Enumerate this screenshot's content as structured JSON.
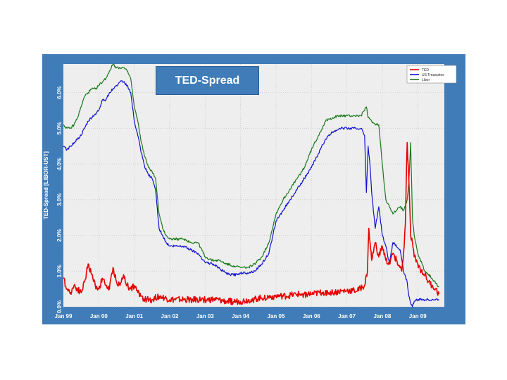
{
  "colors": {
    "frame": "#3f7cb8",
    "plot_bg": "#eeeeee",
    "ted": "#e60000",
    "treasuries": "#1010d0",
    "libor": "#1a7a1a"
  },
  "chart_data": {
    "type": "line",
    "title": "TED-Spread",
    "ylabel": "TED-Spread [LIBOR-UST]",
    "xlabel": "",
    "x_ticks": [
      "Jan 99",
      "Jan 00",
      "Jan 01",
      "Jan 02",
      "Jan 03",
      "Jan 04",
      "Jan 05",
      "Jan 06",
      "Jan 07",
      "Jan 08",
      "Jan 09"
    ],
    "y_ticks": [
      "0.0%",
      "1.0%",
      "2.0%",
      "3.0%",
      "4.0%",
      "5.0%",
      "6.0%"
    ],
    "xlim": [
      1999.0,
      2009.75
    ],
    "ylim": [
      0.0,
      6.8
    ],
    "grid": true,
    "legend_position": "top-right",
    "series": [
      {
        "name": "TED",
        "color": "#e60000",
        "x": [
          1999.0,
          1999.1,
          1999.2,
          1999.3,
          1999.4,
          1999.5,
          1999.6,
          1999.7,
          1999.8,
          1999.9,
          2000.0,
          2000.1,
          2000.2,
          2000.3,
          2000.4,
          2000.5,
          2000.6,
          2000.7,
          2000.8,
          2000.9,
          2001.0,
          2001.1,
          2001.2,
          2001.3,
          2001.5,
          2001.7,
          2002.0,
          2002.3,
          2002.6,
          2003.0,
          2003.3,
          2003.6,
          2004.0,
          2004.3,
          2004.6,
          2005.0,
          2005.3,
          2005.6,
          2006.0,
          2006.3,
          2006.6,
          2007.0,
          2007.3,
          2007.5,
          2007.58,
          2007.62,
          2007.7,
          2007.8,
          2007.9,
          2008.0,
          2008.1,
          2008.2,
          2008.3,
          2008.4,
          2008.5,
          2008.55,
          2008.6,
          2008.65,
          2008.7,
          2008.75,
          2008.8,
          2008.85,
          2008.9,
          2009.0,
          2009.1,
          2009.2,
          2009.3,
          2009.4,
          2009.5,
          2009.6
        ],
        "values": [
          0.8,
          0.5,
          0.4,
          0.6,
          0.5,
          0.4,
          0.7,
          1.2,
          0.9,
          0.6,
          0.5,
          0.8,
          0.6,
          0.5,
          1.1,
          0.7,
          0.6,
          0.9,
          0.6,
          0.5,
          0.6,
          0.4,
          0.3,
          0.2,
          0.2,
          0.3,
          0.2,
          0.2,
          0.2,
          0.2,
          0.2,
          0.15,
          0.15,
          0.2,
          0.25,
          0.3,
          0.3,
          0.35,
          0.35,
          0.4,
          0.4,
          0.45,
          0.45,
          0.6,
          1.0,
          2.2,
          1.3,
          1.8,
          1.4,
          1.7,
          1.3,
          1.2,
          1.5,
          1.3,
          1.1,
          1.0,
          1.5,
          2.3,
          4.6,
          3.5,
          2.0,
          1.8,
          1.4,
          1.2,
          1.0,
          0.9,
          0.7,
          0.6,
          0.5,
          0.35
        ]
      },
      {
        "name": "US Treasuries",
        "color": "#1010d0",
        "x": [
          1999.0,
          1999.1,
          1999.2,
          1999.3,
          1999.4,
          1999.5,
          1999.6,
          1999.7,
          1999.8,
          1999.9,
          2000.0,
          2000.1,
          2000.2,
          2000.3,
          2000.4,
          2000.5,
          2000.6,
          2000.7,
          2000.8,
          2000.9,
          2001.0,
          2001.1,
          2001.2,
          2001.3,
          2001.4,
          2001.5,
          2001.6,
          2001.7,
          2001.8,
          2001.9,
          2002.0,
          2002.2,
          2002.4,
          2002.6,
          2002.8,
          2003.0,
          2003.2,
          2003.4,
          2003.5,
          2003.7,
          2003.9,
          2004.0,
          2004.2,
          2004.4,
          2004.6,
          2004.8,
          2005.0,
          2005.2,
          2005.4,
          2005.6,
          2005.8,
          2006.0,
          2006.2,
          2006.4,
          2006.6,
          2006.8,
          2007.0,
          2007.2,
          2007.4,
          2007.5,
          2007.55,
          2007.6,
          2007.65,
          2007.7,
          2007.8,
          2007.9,
          2008.0,
          2008.1,
          2008.2,
          2008.3,
          2008.4,
          2008.5,
          2008.6,
          2008.7,
          2008.75,
          2008.8,
          2008.85,
          2008.9,
          2008.95,
          2009.0,
          2009.2,
          2009.4,
          2009.6
        ],
        "values": [
          4.5,
          4.4,
          4.5,
          4.6,
          4.7,
          4.8,
          5.0,
          5.2,
          5.3,
          5.4,
          5.5,
          5.8,
          5.8,
          6.0,
          6.1,
          6.2,
          6.3,
          6.3,
          6.2,
          6.0,
          5.2,
          4.8,
          4.3,
          3.9,
          3.7,
          3.6,
          3.3,
          2.2,
          2.0,
          1.8,
          1.7,
          1.7,
          1.7,
          1.6,
          1.5,
          1.25,
          1.2,
          1.1,
          1.0,
          0.9,
          0.9,
          0.95,
          0.95,
          1.0,
          1.2,
          1.5,
          2.4,
          2.7,
          3.0,
          3.3,
          3.6,
          3.9,
          4.3,
          4.7,
          4.9,
          5.0,
          5.0,
          5.0,
          5.0,
          4.8,
          3.2,
          4.5,
          4.0,
          3.2,
          2.2,
          2.8,
          2.0,
          1.7,
          1.2,
          1.8,
          1.7,
          1.6,
          1.0,
          0.7,
          0.3,
          0.1,
          0.0,
          0.15,
          0.2,
          0.2,
          0.2,
          0.2,
          0.2
        ]
      },
      {
        "name": "Libor",
        "color": "#1a7a1a",
        "x": [
          1999.0,
          1999.1,
          1999.2,
          1999.3,
          1999.4,
          1999.5,
          1999.6,
          1999.7,
          1999.8,
          1999.9,
          2000.0,
          2000.1,
          2000.2,
          2000.3,
          2000.4,
          2000.5,
          2000.6,
          2000.7,
          2000.8,
          2000.9,
          2001.0,
          2001.1,
          2001.2,
          2001.3,
          2001.4,
          2001.5,
          2001.6,
          2001.7,
          2001.8,
          2001.9,
          2002.0,
          2002.2,
          2002.4,
          2002.6,
          2002.8,
          2003.0,
          2003.2,
          2003.4,
          2003.6,
          2003.8,
          2004.0,
          2004.2,
          2004.4,
          2004.6,
          2004.8,
          2005.0,
          2005.2,
          2005.4,
          2005.6,
          2005.8,
          2006.0,
          2006.2,
          2006.4,
          2006.6,
          2006.8,
          2007.0,
          2007.2,
          2007.4,
          2007.55,
          2007.6,
          2007.7,
          2007.8,
          2007.9,
          2008.0,
          2008.1,
          2008.2,
          2008.3,
          2008.4,
          2008.5,
          2008.6,
          2008.7,
          2008.75,
          2008.8,
          2008.85,
          2008.9,
          2009.0,
          2009.2,
          2009.4,
          2009.6
        ],
        "values": [
          5.1,
          5.0,
          5.0,
          5.1,
          5.3,
          5.6,
          5.9,
          6.0,
          6.1,
          6.1,
          6.2,
          6.3,
          6.4,
          6.6,
          6.8,
          6.7,
          6.7,
          6.7,
          6.6,
          6.4,
          5.6,
          5.2,
          4.6,
          4.2,
          3.9,
          3.8,
          3.6,
          2.6,
          2.2,
          2.0,
          1.9,
          1.9,
          1.9,
          1.8,
          1.8,
          1.4,
          1.3,
          1.3,
          1.2,
          1.15,
          1.1,
          1.1,
          1.2,
          1.4,
          1.8,
          2.6,
          3.0,
          3.3,
          3.6,
          3.9,
          4.4,
          4.8,
          5.2,
          5.3,
          5.35,
          5.35,
          5.35,
          5.35,
          5.6,
          5.3,
          5.2,
          5.1,
          5.1,
          4.0,
          3.0,
          2.8,
          2.6,
          2.7,
          2.8,
          2.7,
          3.0,
          3.5,
          4.6,
          2.5,
          2.0,
          1.5,
          1.0,
          0.8,
          0.55
        ]
      }
    ]
  }
}
